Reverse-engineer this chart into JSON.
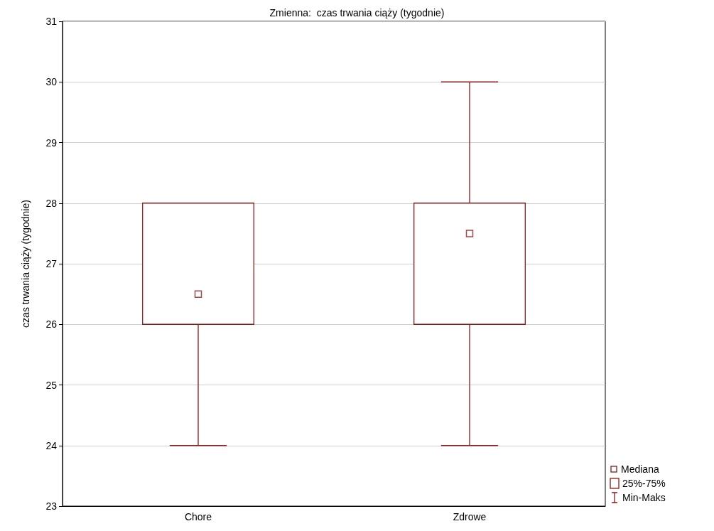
{
  "chart_data": {
    "type": "box",
    "title": "Zmienna:  czas trwania ciąży (tygodnie)",
    "ylabel": "czas trwania ciąży (tygodnie)",
    "categories": [
      "Chore",
      "Zdrowe"
    ],
    "boxes": [
      {
        "low": 24,
        "q1": 26,
        "median": 26.5,
        "q3": 28,
        "high": 28
      },
      {
        "low": 24,
        "q1": 26,
        "median": 27.5,
        "q3": 28,
        "high": 30
      }
    ],
    "color": "#8b1a1a",
    "ylim": [
      23,
      31
    ],
    "yticks": [
      23,
      24,
      25,
      26,
      27,
      28,
      29,
      30,
      31
    ],
    "grid": "y",
    "marker": "square",
    "annotations": [
      "Mediana",
      "25%-75%",
      "Min-Maks"
    ]
  }
}
